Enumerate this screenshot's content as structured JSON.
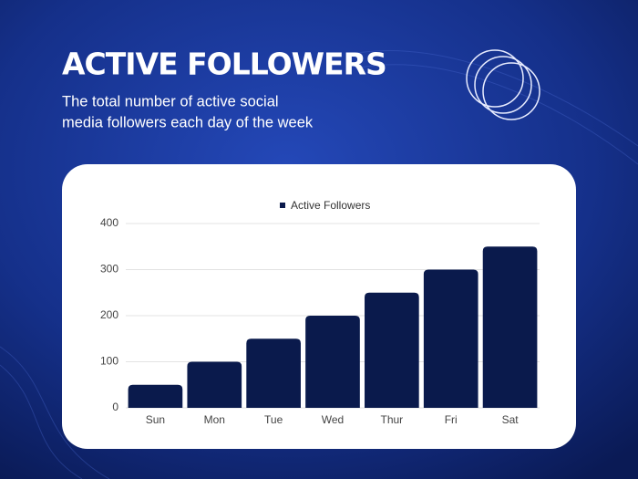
{
  "chart_data": {
    "type": "bar",
    "title": "ACTIVE FOLLOWERS",
    "subtitle": [
      "The total number of active social",
      "media followers each day of the week"
    ],
    "categories": [
      "Sun",
      "Mon",
      "Tue",
      "Wed",
      "Thur",
      "Fri",
      "Sat"
    ],
    "series": [
      {
        "name": "Active Followers",
        "color": "#0a1a4c",
        "values": [
          50,
          100,
          150,
          200,
          250,
          300,
          350
        ]
      }
    ],
    "ylim": [
      0,
      400
    ],
    "yticks": [
      0,
      100,
      200,
      300,
      400
    ],
    "grid": true,
    "legend": "top"
  }
}
